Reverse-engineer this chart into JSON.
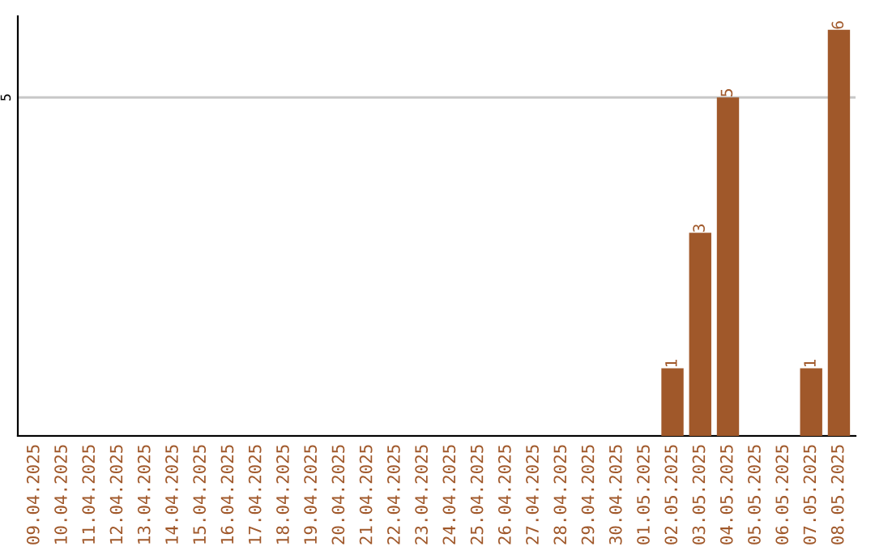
{
  "chart_data": {
    "type": "bar",
    "categories": [
      "09.04.2025",
      "10.04.2025",
      "11.04.2025",
      "12.04.2025",
      "13.04.2025",
      "14.04.2025",
      "15.04.2025",
      "16.04.2025",
      "17.04.2025",
      "18.04.2025",
      "19.04.2025",
      "20.04.2025",
      "21.04.2025",
      "22.04.2025",
      "23.04.2025",
      "24.04.2025",
      "25.04.2025",
      "26.04.2025",
      "27.04.2025",
      "28.04.2025",
      "29.04.2025",
      "30.04.2025",
      "01.05.2025",
      "02.05.2025",
      "03.05.2025",
      "04.05.2025",
      "05.05.2025",
      "06.05.2025",
      "07.05.2025",
      "08.05.2025"
    ],
    "values": [
      null,
      null,
      null,
      null,
      null,
      null,
      null,
      null,
      null,
      null,
      null,
      null,
      null,
      null,
      null,
      null,
      null,
      null,
      null,
      null,
      null,
      null,
      null,
      1,
      3,
      5,
      null,
      null,
      1,
      6
    ],
    "data_labels": true,
    "color": "#a0582a",
    "ylim": [
      0,
      6.2
    ],
    "yticks": [
      {
        "value": 0,
        "label": null
      },
      5
    ],
    "grid": "y",
    "legend": false
  }
}
